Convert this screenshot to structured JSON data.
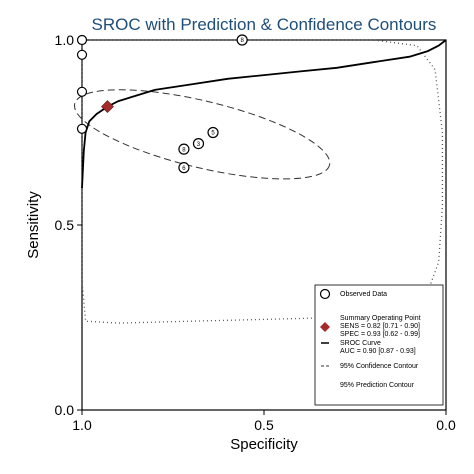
{
  "chart_data": {
    "type": "scatter",
    "title": "SROC with Prediction & Confidence Contours",
    "xlabel": "Specificity",
    "ylabel": "Sensitivity",
    "xlim": [
      1.0,
      0.0
    ],
    "ylim": [
      0.0,
      1.0
    ],
    "x_reversed": true,
    "xticks": [
      "1.0",
      "0.5",
      "0.0"
    ],
    "yticks": [
      "0.0",
      "0.5",
      "1.0"
    ],
    "grid": false,
    "legend_position": "bottom-right",
    "observed_data": [
      {
        "label": "",
        "specificity": 1.0,
        "sensitivity": 1.0
      },
      {
        "label": "",
        "specificity": 1.0,
        "sensitivity": 0.96
      },
      {
        "label": "",
        "specificity": 1.0,
        "sensitivity": 0.86
      },
      {
        "label": "",
        "specificity": 1.0,
        "sensitivity": 0.76
      },
      {
        "label": "8",
        "specificity": 0.56,
        "sensitivity": 1.0
      },
      {
        "label": "5",
        "specificity": 0.64,
        "sensitivity": 0.75
      },
      {
        "label": "3",
        "specificity": 0.68,
        "sensitivity": 0.72
      },
      {
        "label": "8",
        "specificity": 0.72,
        "sensitivity": 0.705
      },
      {
        "label": "6",
        "specificity": 0.72,
        "sensitivity": 0.655
      }
    ],
    "summary_point": {
      "specificity": 0.93,
      "sensitivity": 0.82,
      "color": "#a52a2a"
    },
    "sroc_curve": [
      [
        1.0,
        0.6
      ],
      [
        0.995,
        0.7
      ],
      [
        0.99,
        0.75
      ],
      [
        0.98,
        0.78
      ],
      [
        0.96,
        0.8
      ],
      [
        0.93,
        0.82
      ],
      [
        0.9,
        0.835
      ],
      [
        0.85,
        0.85
      ],
      [
        0.8,
        0.865
      ],
      [
        0.7,
        0.88
      ],
      [
        0.6,
        0.895
      ],
      [
        0.5,
        0.905
      ],
      [
        0.4,
        0.915
      ],
      [
        0.3,
        0.925
      ],
      [
        0.2,
        0.94
      ],
      [
        0.1,
        0.955
      ],
      [
        0.05,
        0.97
      ],
      [
        0.02,
        0.985
      ],
      [
        0.0,
        1.0
      ]
    ],
    "confidence_contour": {
      "center": [
        0.67,
        0.745
      ],
      "radii": [
        0.36,
        0.09
      ],
      "rotation": -0.236
    },
    "prediction_contour": [
      [
        0.56,
        1.0
      ],
      [
        0.4,
        1.0
      ],
      [
        0.2,
        1.0
      ],
      [
        0.08,
        0.985
      ],
      [
        0.03,
        0.92
      ],
      [
        0.01,
        0.75
      ],
      [
        0.01,
        0.55
      ],
      [
        0.02,
        0.4
      ],
      [
        0.05,
        0.32
      ],
      [
        0.12,
        0.27
      ],
      [
        0.3,
        0.25
      ],
      [
        0.5,
        0.245
      ],
      [
        0.7,
        0.24
      ],
      [
        0.9,
        0.235
      ],
      [
        0.99,
        0.24
      ],
      [
        1.0,
        0.35
      ],
      [
        1.0,
        0.6
      ],
      [
        1.0,
        0.85
      ],
      [
        1.0,
        1.0
      ],
      [
        0.8,
        1.0
      ],
      [
        0.56,
        1.0
      ]
    ],
    "legend": [
      {
        "key": "observed",
        "lines": [
          "Observed Data"
        ]
      },
      {
        "key": "summary",
        "lines": [
          "Summary Operating Point",
          "SENS = 0.82 [0.71 - 0.90]",
          "SPEC = 0.93 [0.62 - 0.99]"
        ]
      },
      {
        "key": "sroc",
        "lines": [
          "SROC Curve",
          "AUC = 0.90 [0.87 - 0.93]"
        ]
      },
      {
        "key": "confidence",
        "lines": [
          "95% Confidence Contour"
        ]
      },
      {
        "key": "prediction",
        "lines": [
          "95% Prediction Contour"
        ]
      }
    ]
  }
}
